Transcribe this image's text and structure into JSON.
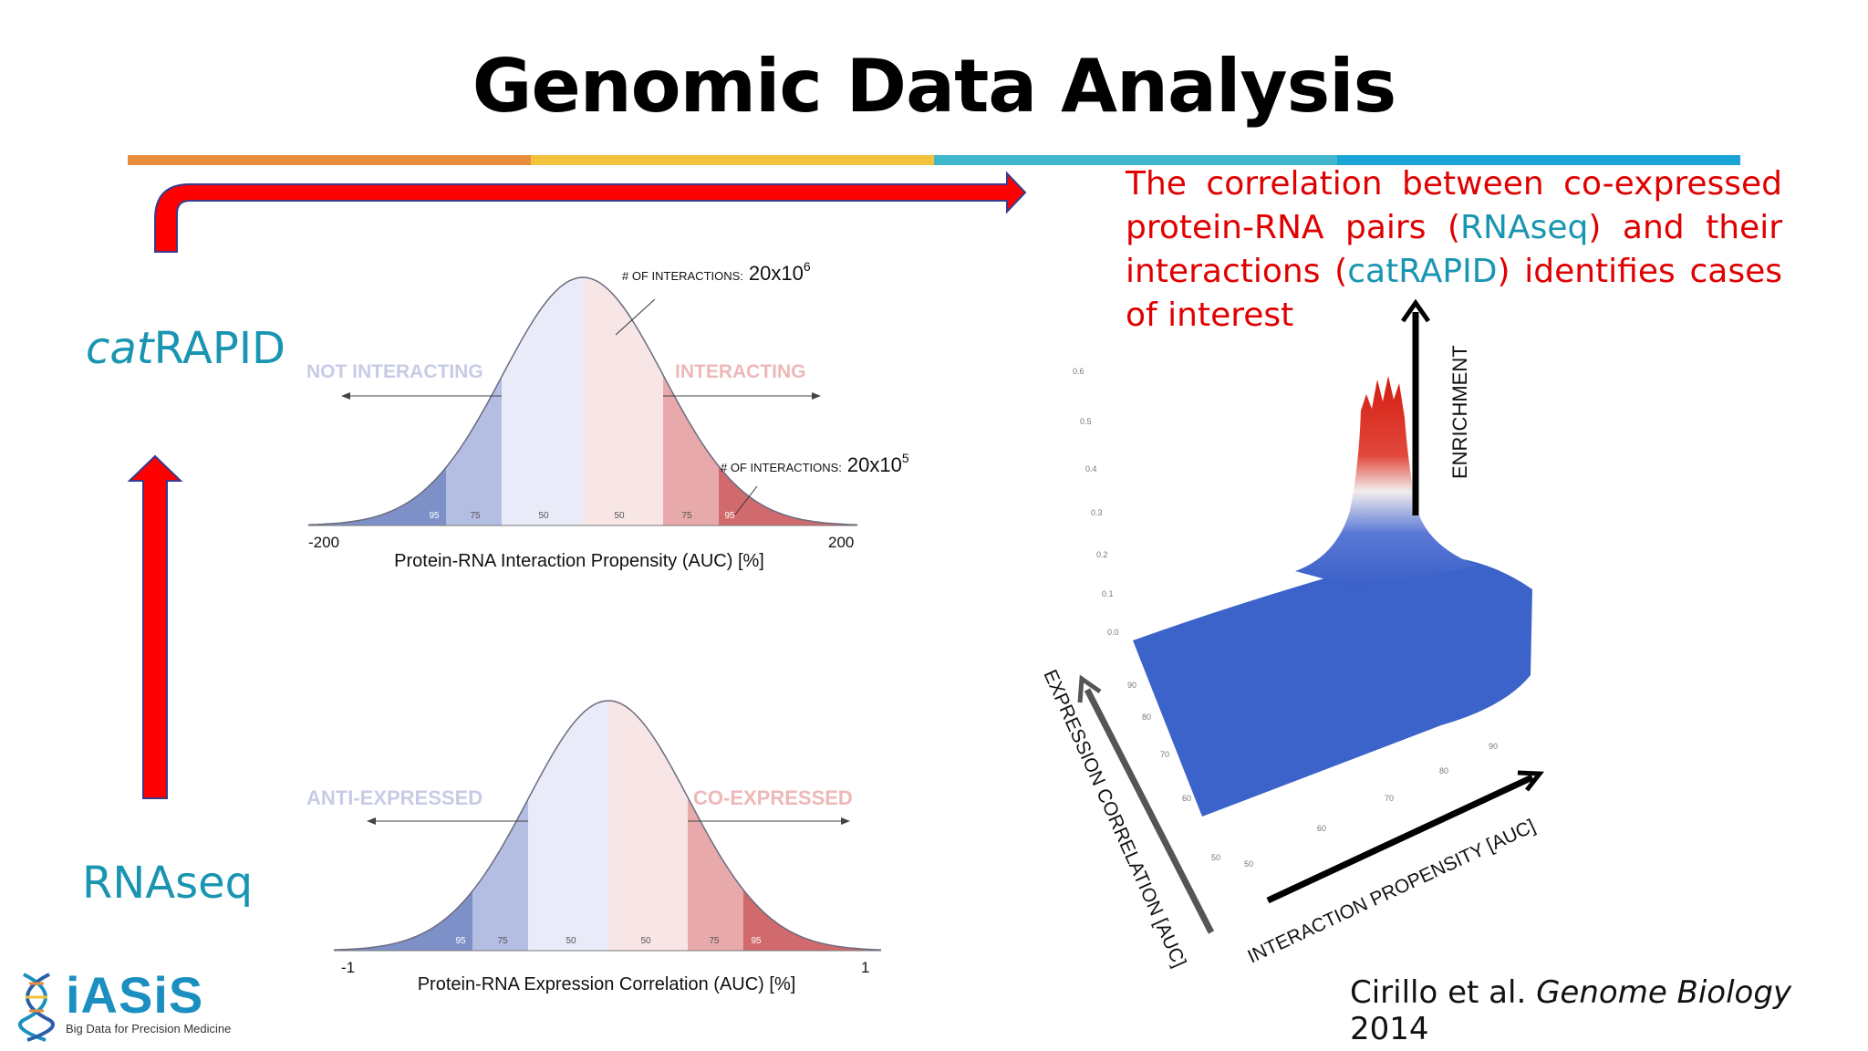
{
  "title": "Genomic Data Analysis",
  "header_bands": [
    "#e98c3c",
    "#f2c23d",
    "#40b6cc",
    "#1aa3d6"
  ],
  "statement": {
    "p1": "The correlation between co-expressed protein-RNA pairs (",
    "rnaseq": "RNAseq",
    "p2": ") and their interactions (",
    "catrapid": "catRAPID",
    "p3": ") identifies cases of interest"
  },
  "labels": {
    "catrapid_italic": "cat",
    "catrapid_rest": "RAPID",
    "rnaseq": "RNAseq"
  },
  "chart_top": {
    "left_region": "NOT INTERACTING",
    "right_region": "INTERACTING",
    "annotation1_prefix": "# OF INTERACTIONS:",
    "annotation1_value": "20x10",
    "annotation1_exp": "6",
    "annotation2_prefix": "# OF INTERACTIONS:",
    "annotation2_value": "20x10",
    "annotation2_exp": "5",
    "band_labels": [
      "95",
      "75",
      "50",
      "50",
      "75",
      "95"
    ],
    "x_min": "-200",
    "x_max": "200",
    "xlabel": "Protein-RNA Interaction Propensity (AUC) [%]"
  },
  "chart_bottom": {
    "left_region": "ANTI-EXPRESSED",
    "right_region": "CO-EXPRESSED",
    "band_labels": [
      "95",
      "75",
      "50",
      "50",
      "75",
      "95"
    ],
    "x_min": "-1",
    "x_max": "1",
    "xlabel": "Protein-RNA Expression Correlation (AUC) [%]"
  },
  "surface": {
    "z_ticks": [
      "0.6",
      "0.5",
      "0.4",
      "0.3",
      "0.2",
      "0.1",
      "0.0"
    ],
    "left_ticks": [
      "90",
      "80",
      "70",
      "60",
      "50"
    ],
    "right_ticks": [
      "50",
      "60",
      "70",
      "80",
      "90"
    ],
    "z_axis_label": "ENRICHMENT",
    "left_axis_label": "EXPRESSION CORRELATION [AUC]",
    "right_axis_label": "INTERACTION PROPENSITY [AUC]"
  },
  "citation": {
    "authors": "Cirillo et al.",
    "journal": "Genome Biology",
    "year": "2014"
  },
  "logo": {
    "name": "iASiS",
    "tagline": "Big Data for Precision Medicine"
  }
}
